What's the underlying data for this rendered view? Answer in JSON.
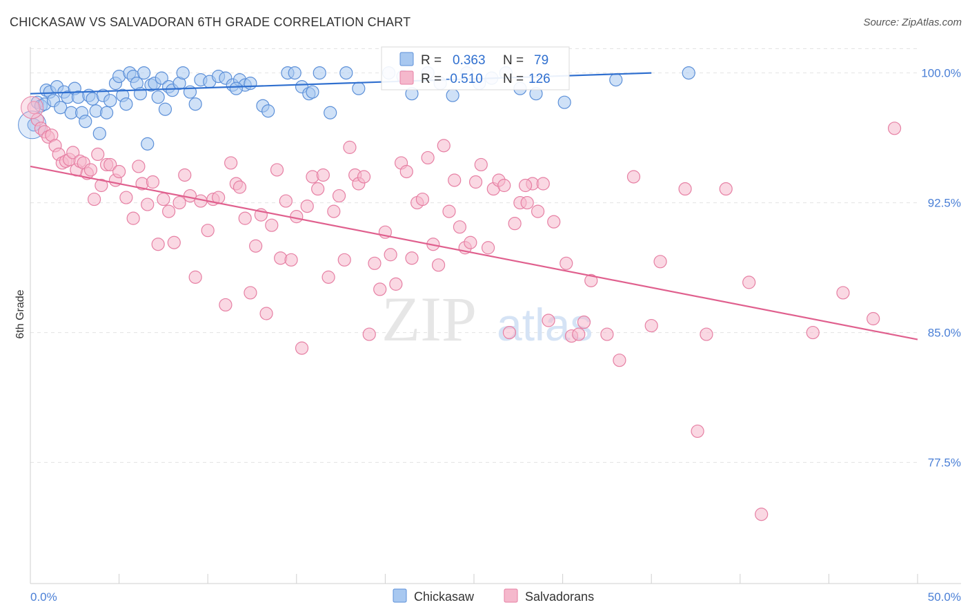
{
  "title": "CHICKASAW VS SALVADORAN 6TH GRADE CORRELATION CHART",
  "source": "Source: ZipAtlas.com",
  "watermark": {
    "zip": "ZIP",
    "atlas": "atlas"
  },
  "colors": {
    "chickasaw_fill": "#a8c8f0",
    "chickasaw_stroke": "#5b8fd8",
    "chickasaw_line": "#2f6fcf",
    "salvadoran_fill": "#f5b8cc",
    "salvadoran_stroke": "#e67fa3",
    "salvadoran_line": "#e0608e",
    "grid": "#e3e3e3",
    "tick_text": "#4a7fd6"
  },
  "legend": {
    "r_label": "R =",
    "n_label": "N =",
    "rows": [
      {
        "series": "Chickasaw",
        "r": "0.363",
        "n": "79"
      },
      {
        "series": "Salvadorans",
        "r": "-0.510",
        "n": "126"
      }
    ]
  },
  "chart_data": {
    "type": "scatter",
    "xlabel": "",
    "ylabel": "6th Grade",
    "xlim": [
      0,
      50
    ],
    "ylim": [
      70.5,
      101.5
    ],
    "x_tick_labels": [
      "0.0%",
      "50.0%"
    ],
    "y_ticks": [
      100.0,
      92.5,
      85.0,
      77.5
    ],
    "y_tick_labels": [
      "100.0%",
      "92.5%",
      "85.0%",
      "77.5%"
    ],
    "series": [
      {
        "name": "Chickasaw",
        "trend": {
          "x": [
            0,
            35
          ],
          "y": [
            98.8,
            100.0
          ]
        },
        "points": [
          [
            0.2,
            97.0
          ],
          [
            0.4,
            98.3
          ],
          [
            0.6,
            98.1
          ],
          [
            0.8,
            98.2
          ],
          [
            0.9,
            99.0
          ],
          [
            1.1,
            98.9
          ],
          [
            1.3,
            98.4
          ],
          [
            1.5,
            99.2
          ],
          [
            1.7,
            98.0
          ],
          [
            1.9,
            98.9
          ],
          [
            2.1,
            98.6
          ],
          [
            2.3,
            97.7
          ],
          [
            2.5,
            99.1
          ],
          [
            2.7,
            98.6
          ],
          [
            2.9,
            97.7
          ],
          [
            3.1,
            97.2
          ],
          [
            3.3,
            98.7
          ],
          [
            3.5,
            98.5
          ],
          [
            3.7,
            97.8
          ],
          [
            3.9,
            96.5
          ],
          [
            4.1,
            98.7
          ],
          [
            4.3,
            97.7
          ],
          [
            4.5,
            98.4
          ],
          [
            4.8,
            99.4
          ],
          [
            5.0,
            99.8
          ],
          [
            5.2,
            98.7
          ],
          [
            5.4,
            98.2
          ],
          [
            5.6,
            100.0
          ],
          [
            5.8,
            99.8
          ],
          [
            6.0,
            99.4
          ],
          [
            6.2,
            98.8
          ],
          [
            6.4,
            100.0
          ],
          [
            6.6,
            95.9
          ],
          [
            6.8,
            99.3
          ],
          [
            7.0,
            99.4
          ],
          [
            7.2,
            98.6
          ],
          [
            7.4,
            99.7
          ],
          [
            7.6,
            97.9
          ],
          [
            7.8,
            99.2
          ],
          [
            8.0,
            99.0
          ],
          [
            8.4,
            99.4
          ],
          [
            8.6,
            100.0
          ],
          [
            9.0,
            98.9
          ],
          [
            9.3,
            98.2
          ],
          [
            9.6,
            99.6
          ],
          [
            10.1,
            99.5
          ],
          [
            10.6,
            99.8
          ],
          [
            11.0,
            99.7
          ],
          [
            11.4,
            99.3
          ],
          [
            11.8,
            99.6
          ],
          [
            12.1,
            99.3
          ],
          [
            12.4,
            99.4
          ],
          [
            13.1,
            98.1
          ],
          [
            13.4,
            97.8
          ],
          [
            14.5,
            100.0
          ],
          [
            14.9,
            100.0
          ],
          [
            15.3,
            99.2
          ],
          [
            15.7,
            98.8
          ],
          [
            15.9,
            98.9
          ],
          [
            16.3,
            100.0
          ],
          [
            16.9,
            97.7
          ],
          [
            17.8,
            100.0
          ],
          [
            18.5,
            99.1
          ],
          [
            20.2,
            100.0
          ],
          [
            21.0,
            99.8
          ],
          [
            21.5,
            98.8
          ],
          [
            22.4,
            100.0
          ],
          [
            23.1,
            99.4
          ],
          [
            23.8,
            98.7
          ],
          [
            24.6,
            100.0
          ],
          [
            25.3,
            99.4
          ],
          [
            26.0,
            99.7
          ],
          [
            26.8,
            100.0
          ],
          [
            27.6,
            99.1
          ],
          [
            28.5,
            98.8
          ],
          [
            30.1,
            98.3
          ],
          [
            33.0,
            99.6
          ],
          [
            37.1,
            100.0
          ],
          [
            11.6,
            99.1
          ]
        ]
      },
      {
        "name": "Salvadorans",
        "trend": {
          "x": [
            0,
            50
          ],
          "y": [
            94.6,
            84.6
          ]
        },
        "points": [
          [
            0.2,
            98.0
          ],
          [
            0.4,
            97.3
          ],
          [
            0.6,
            96.8
          ],
          [
            0.8,
            96.6
          ],
          [
            1.0,
            96.3
          ],
          [
            1.2,
            96.4
          ],
          [
            1.4,
            95.8
          ],
          [
            1.6,
            95.3
          ],
          [
            1.8,
            94.8
          ],
          [
            2.0,
            94.9
          ],
          [
            2.2,
            95.0
          ],
          [
            2.4,
            95.4
          ],
          [
            2.6,
            94.4
          ],
          [
            2.8,
            94.9
          ],
          [
            3.0,
            94.8
          ],
          [
            3.2,
            94.2
          ],
          [
            3.4,
            94.4
          ],
          [
            3.6,
            92.7
          ],
          [
            3.8,
            95.3
          ],
          [
            4.0,
            93.5
          ],
          [
            4.3,
            94.7
          ],
          [
            4.5,
            94.7
          ],
          [
            4.8,
            93.8
          ],
          [
            5.0,
            94.3
          ],
          [
            5.4,
            92.8
          ],
          [
            5.8,
            91.6
          ],
          [
            6.1,
            94.6
          ],
          [
            6.3,
            93.6
          ],
          [
            6.6,
            92.4
          ],
          [
            6.9,
            93.7
          ],
          [
            7.2,
            90.1
          ],
          [
            7.5,
            92.7
          ],
          [
            7.8,
            92.0
          ],
          [
            8.1,
            90.2
          ],
          [
            8.4,
            92.5
          ],
          [
            8.7,
            94.1
          ],
          [
            9.0,
            92.9
          ],
          [
            9.3,
            88.2
          ],
          [
            9.6,
            92.6
          ],
          [
            10.0,
            90.9
          ],
          [
            10.3,
            92.7
          ],
          [
            10.6,
            92.8
          ],
          [
            11.0,
            86.6
          ],
          [
            11.3,
            94.8
          ],
          [
            11.6,
            93.6
          ],
          [
            11.8,
            93.4
          ],
          [
            12.1,
            91.6
          ],
          [
            12.4,
            87.3
          ],
          [
            12.7,
            90.0
          ],
          [
            13.0,
            91.8
          ],
          [
            13.3,
            86.1
          ],
          [
            13.6,
            91.2
          ],
          [
            13.9,
            94.4
          ],
          [
            14.1,
            89.3
          ],
          [
            14.4,
            92.6
          ],
          [
            14.7,
            89.2
          ],
          [
            15.0,
            91.7
          ],
          [
            15.3,
            84.1
          ],
          [
            15.6,
            92.3
          ],
          [
            15.9,
            94.0
          ],
          [
            16.2,
            93.3
          ],
          [
            16.5,
            94.1
          ],
          [
            16.8,
            88.2
          ],
          [
            17.1,
            92.0
          ],
          [
            17.4,
            92.9
          ],
          [
            17.7,
            89.2
          ],
          [
            18.0,
            95.7
          ],
          [
            18.3,
            94.1
          ],
          [
            18.5,
            93.6
          ],
          [
            18.8,
            94.0
          ],
          [
            19.1,
            84.9
          ],
          [
            19.4,
            89.0
          ],
          [
            19.7,
            87.5
          ],
          [
            20.0,
            90.8
          ],
          [
            20.3,
            89.5
          ],
          [
            20.6,
            87.8
          ],
          [
            20.9,
            94.8
          ],
          [
            21.2,
            94.3
          ],
          [
            21.5,
            89.3
          ],
          [
            21.8,
            92.5
          ],
          [
            22.1,
            92.7
          ],
          [
            22.4,
            95.1
          ],
          [
            22.7,
            90.1
          ],
          [
            23.0,
            88.9
          ],
          [
            23.3,
            95.8
          ],
          [
            23.6,
            92.0
          ],
          [
            23.9,
            93.8
          ],
          [
            24.2,
            91.1
          ],
          [
            24.5,
            89.9
          ],
          [
            24.8,
            90.2
          ],
          [
            25.1,
            93.7
          ],
          [
            25.4,
            94.7
          ],
          [
            25.8,
            89.9
          ],
          [
            26.1,
            93.3
          ],
          [
            26.4,
            93.8
          ],
          [
            26.7,
            93.5
          ],
          [
            27.0,
            85.0
          ],
          [
            27.3,
            91.3
          ],
          [
            27.6,
            92.5
          ],
          [
            28.0,
            92.5
          ],
          [
            28.3,
            93.6
          ],
          [
            28.6,
            92.0
          ],
          [
            28.9,
            93.6
          ],
          [
            29.2,
            85.7
          ],
          [
            29.5,
            91.4
          ],
          [
            30.2,
            89.0
          ],
          [
            30.5,
            84.8
          ],
          [
            30.9,
            84.9
          ],
          [
            31.2,
            85.6
          ],
          [
            31.6,
            88.0
          ],
          [
            32.5,
            84.9
          ],
          [
            33.2,
            83.4
          ],
          [
            34.0,
            94.0
          ],
          [
            35.0,
            85.4
          ],
          [
            35.5,
            89.1
          ],
          [
            37.6,
            79.3
          ],
          [
            38.1,
            84.9
          ],
          [
            39.2,
            93.3
          ],
          [
            40.5,
            87.9
          ],
          [
            41.2,
            74.5
          ],
          [
            44.1,
            85.0
          ],
          [
            45.8,
            87.3
          ],
          [
            47.5,
            85.8
          ],
          [
            48.7,
            96.8
          ],
          [
            27.9,
            93.5
          ],
          [
            36.9,
            93.3
          ]
        ]
      }
    ]
  },
  "bottom_legend": [
    "Chickasaw",
    "Salvadorans"
  ]
}
